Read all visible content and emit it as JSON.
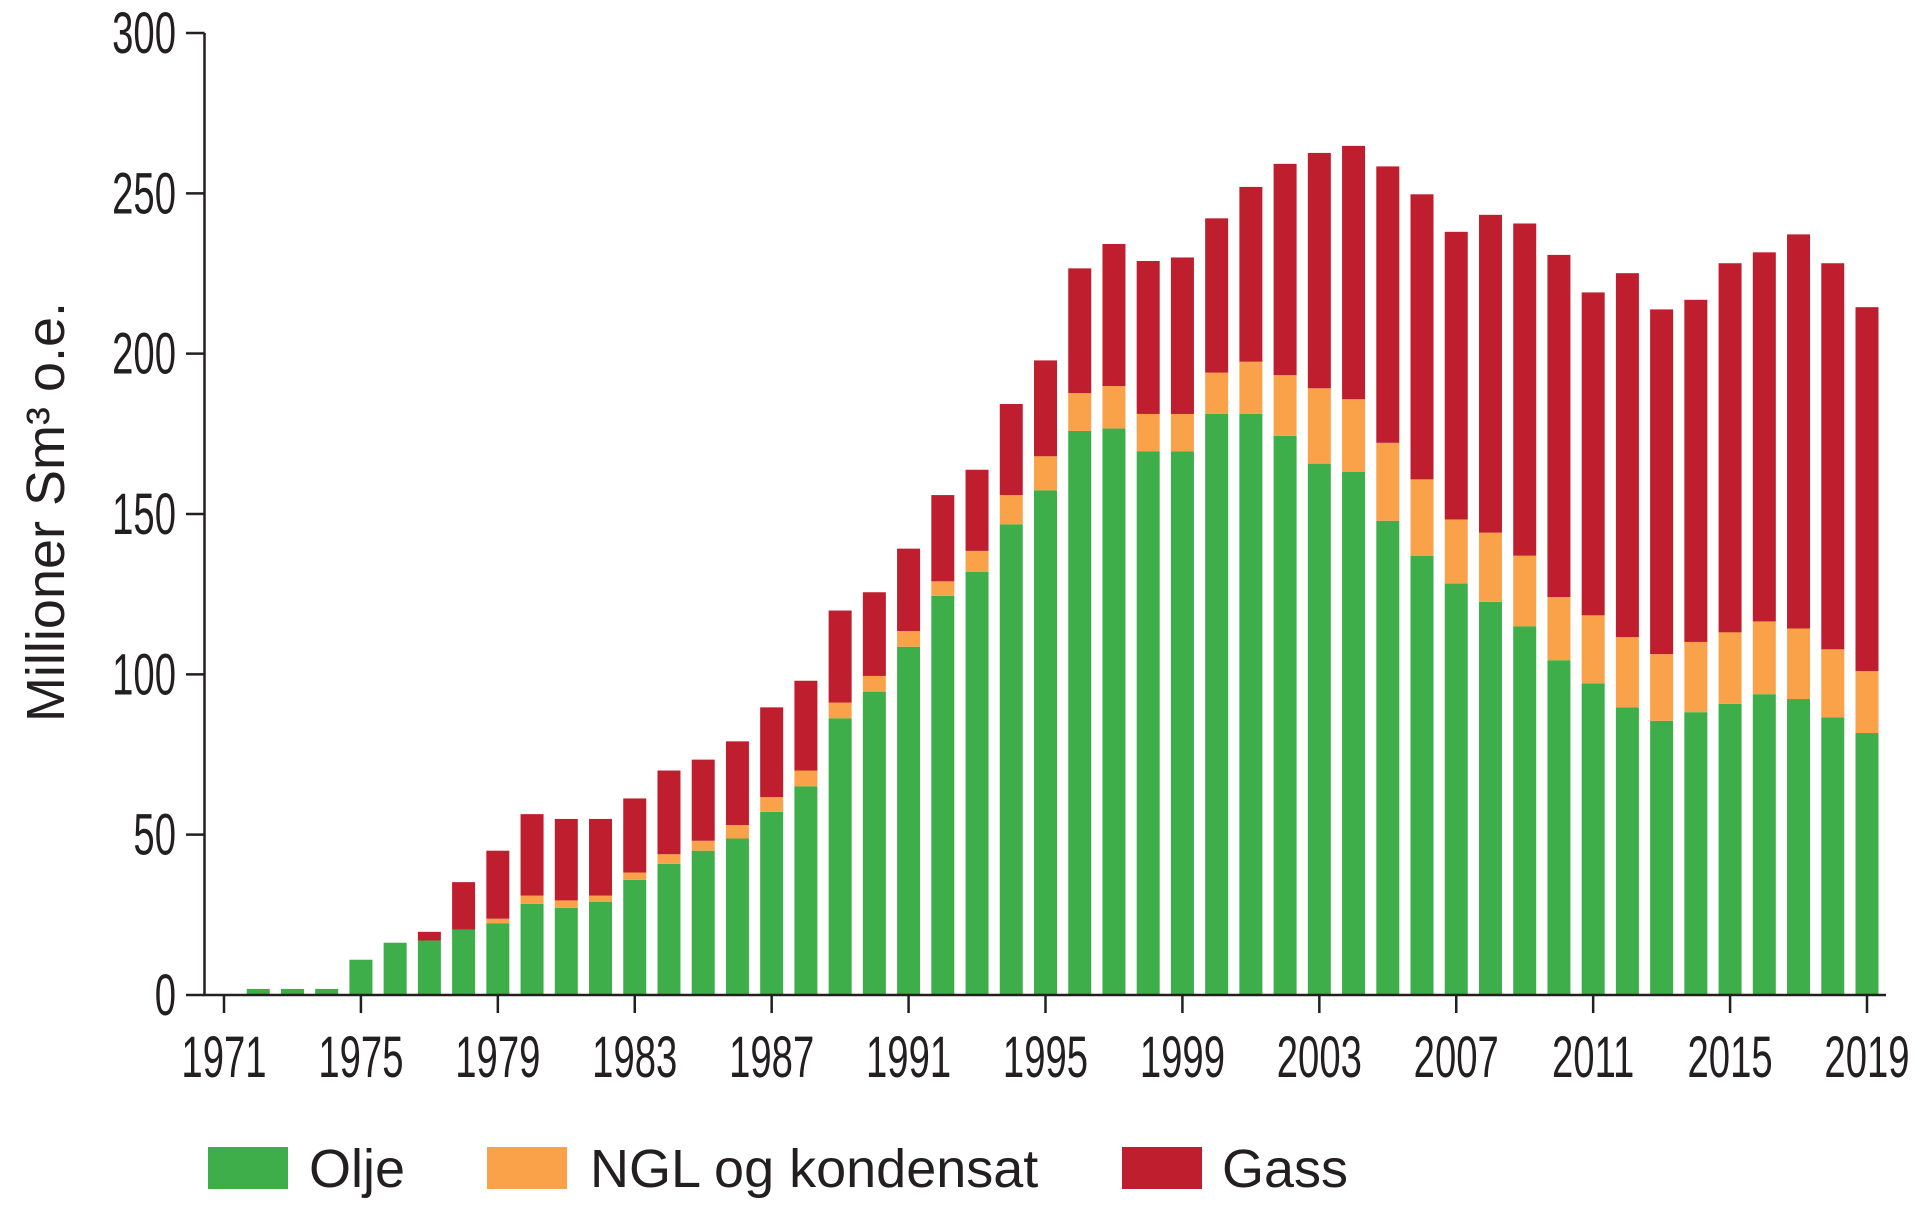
{
  "chart_data": {
    "type": "bar",
    "stacked": true,
    "title": "",
    "xlabel": "",
    "ylabel": "Millioner Sm³ o.e.",
    "ylim": [
      0,
      300
    ],
    "y_ticks": [
      0,
      50,
      100,
      150,
      200,
      250,
      300
    ],
    "x_tick_labels": [
      "1971",
      "1975",
      "1979",
      "1983",
      "1987",
      "1991",
      "1995",
      "1999",
      "2003",
      "2007",
      "2011",
      "2015",
      "2019"
    ],
    "grid": false,
    "legend_position": "bottom-left",
    "categories": [
      1971,
      1972,
      1973,
      1974,
      1975,
      1976,
      1977,
      1978,
      1979,
      1980,
      1981,
      1982,
      1983,
      1984,
      1985,
      1986,
      1987,
      1988,
      1989,
      1990,
      1991,
      1992,
      1993,
      1994,
      1995,
      1996,
      1997,
      1998,
      1999,
      2000,
      2001,
      2002,
      2003,
      2004,
      2005,
      2006,
      2007,
      2008,
      2009,
      2010,
      2011,
      2012,
      2013,
      2014,
      2015,
      2016,
      2017,
      2018,
      2019
    ],
    "series": [
      {
        "name": "Olje",
        "color": "#3dae49",
        "values": [
          0.3,
          1.9,
          1.9,
          1.9,
          11.0,
          16.3,
          17.0,
          20.4,
          22.3,
          28.4,
          27.2,
          29.1,
          35.9,
          40.9,
          45.0,
          48.8,
          57.1,
          65.1,
          86.3,
          94.6,
          108.6,
          124.5,
          132.0,
          146.8,
          157.4,
          175.9,
          176.7,
          169.5,
          169.5,
          181.2,
          181.2,
          174.4,
          165.7,
          163.1,
          147.9,
          137.0,
          128.3,
          122.6,
          115.0,
          104.4,
          97.2,
          89.7,
          85.5,
          88.2,
          90.8,
          93.8,
          92.3,
          86.6,
          81.7
        ]
      },
      {
        "name": "NGL og kondensat",
        "color": "#f9a24a",
        "values": [
          0,
          0,
          0,
          0,
          0,
          0,
          0,
          0,
          1.5,
          2.6,
          2.3,
          1.9,
          2.3,
          3.0,
          3.1,
          4.2,
          4.6,
          4.9,
          4.9,
          4.9,
          4.9,
          4.5,
          6.5,
          9.1,
          10.6,
          11.8,
          13.2,
          11.7,
          11.7,
          12.9,
          16.3,
          18.9,
          23.5,
          22.7,
          24.3,
          23.8,
          20.0,
          21.6,
          22.0,
          19.7,
          21.2,
          21.9,
          20.8,
          21.9,
          22.3,
          22.7,
          22.0,
          21.2,
          19.3
        ]
      },
      {
        "name": "Gass",
        "color": "#be1e2d",
        "values": [
          0,
          0,
          0,
          0,
          0,
          0,
          2.7,
          14.8,
          21.2,
          25.4,
          25.4,
          23.9,
          23.1,
          26.1,
          25.3,
          26.1,
          28.0,
          28.0,
          28.7,
          26.1,
          25.7,
          26.9,
          25.3,
          28.4,
          29.9,
          38.9,
          44.3,
          47.7,
          48.8,
          48.1,
          54.5,
          65.9,
          73.4,
          79.0,
          86.2,
          88.9,
          89.7,
          99.1,
          103.6,
          106.7,
          100.7,
          113.5,
          107.5,
          106.7,
          115.1,
          115.1,
          122.9,
          120.4,
          113.5
        ]
      }
    ]
  }
}
